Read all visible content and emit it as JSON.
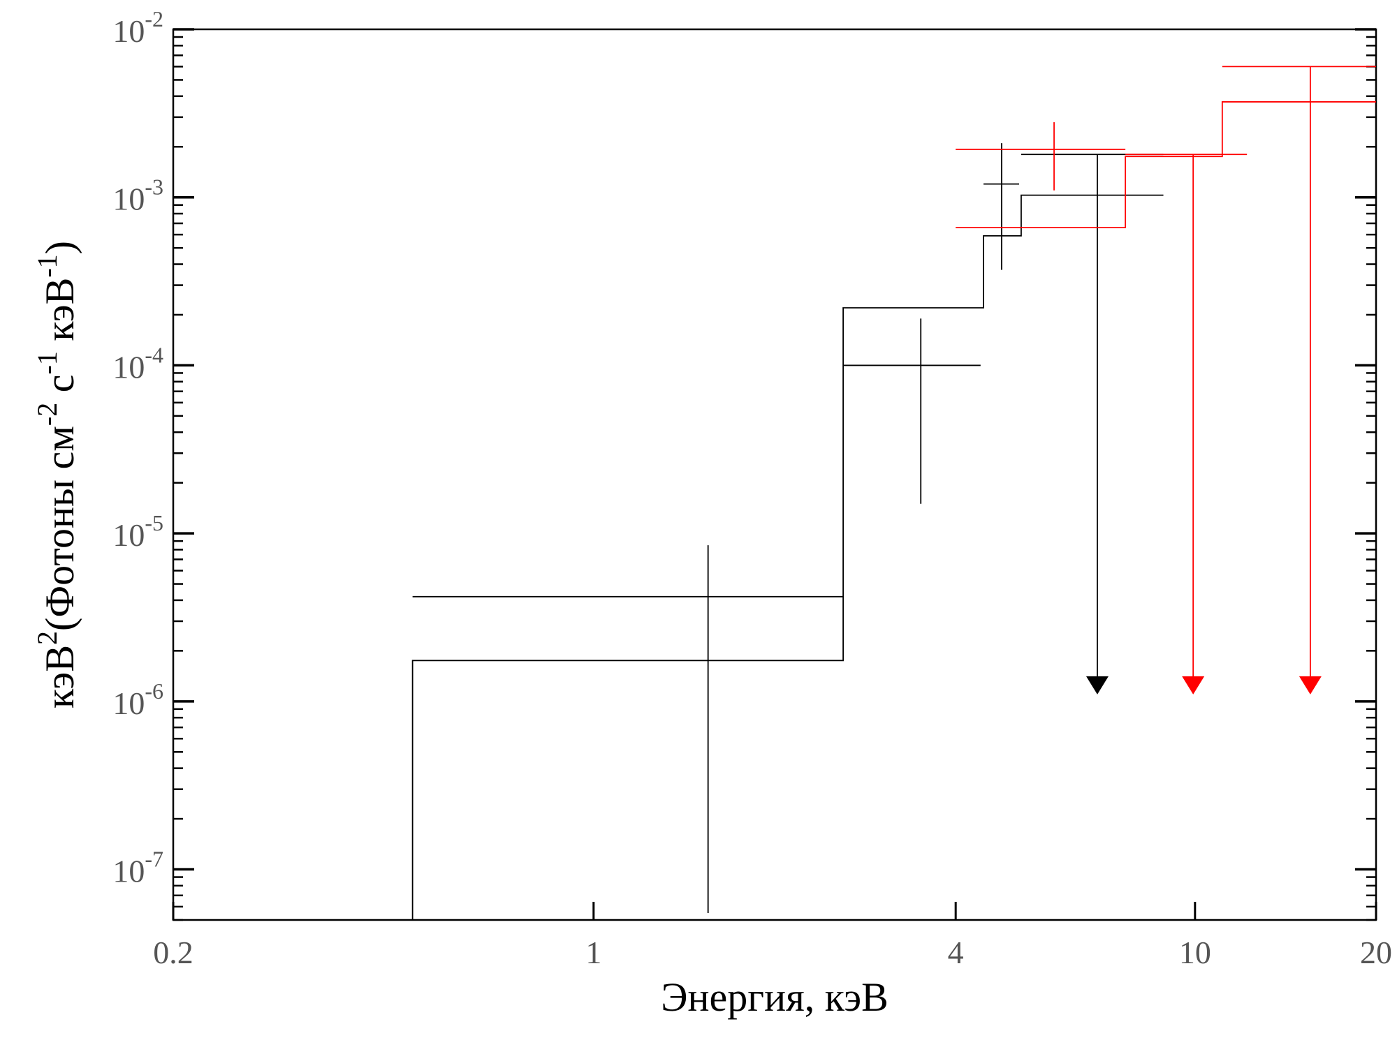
{
  "chart_data": {
    "type": "step",
    "xlabel": "Энергия, кэВ",
    "ylabel_parts": [
      "кэВ",
      "2",
      "(Фотоны см",
      "-2",
      " с",
      "-1",
      " кэВ",
      "-1",
      ")"
    ],
    "x_scale": "log",
    "y_scale": "log",
    "xlim": [
      0.2,
      20
    ],
    "ylim": [
      5e-08,
      0.01
    ],
    "x_ticks": [
      {
        "value": 0.2,
        "label": "0.2"
      },
      {
        "value": 1,
        "label": "1"
      },
      {
        "value": 4,
        "label": "4"
      },
      {
        "value": 10,
        "label": "10"
      },
      {
        "value": 20,
        "label": "20"
      }
    ],
    "y_ticks": [
      {
        "value": 0.01,
        "base": "10",
        "exp": "-2"
      },
      {
        "value": 0.001,
        "base": "10",
        "exp": "-3"
      },
      {
        "value": 0.0001,
        "base": "10",
        "exp": "-4"
      },
      {
        "value": 1e-05,
        "base": "10",
        "exp": "-5"
      },
      {
        "value": 1e-06,
        "base": "10",
        "exp": "-6"
      },
      {
        "value": 1e-07,
        "base": "10",
        "exp": "-7"
      }
    ],
    "grid": false,
    "series": [
      {
        "color": "#000000",
        "data_points": [
          {
            "x": 1.55,
            "xlo": 0.5,
            "xhi": 2.6,
            "y": 4.2e-06,
            "ylo": 5.5e-08,
            "yhi": 8.5e-06
          },
          {
            "x": 3.5,
            "xlo": 2.6,
            "xhi": 4.4,
            "y": 0.0001,
            "ylo": 1.5e-05,
            "yhi": 0.00019
          },
          {
            "x": 4.77,
            "xlo": 4.45,
            "xhi": 5.1,
            "y": 0.0012,
            "ylo": 0.00037,
            "yhi": 0.0021
          },
          {
            "x": 6.88,
            "xlo": 5.14,
            "xhi": 8.86,
            "y": 0.0018,
            "ylo": 1.1e-06,
            "yhi": 0.0018,
            "upper_limit": true
          }
        ],
        "model_steps": [
          {
            "xlo": 0.5,
            "xhi": 2.6,
            "y": 1.75e-06
          },
          {
            "xlo": 2.6,
            "xhi": 4.45,
            "y": 0.00022
          },
          {
            "xlo": 4.45,
            "xhi": 5.14,
            "y": 0.00059
          },
          {
            "xlo": 5.14,
            "xhi": 8.86,
            "y": 0.00103
          }
        ],
        "model_floor": 5e-08
      },
      {
        "color": "#ff0000",
        "data_points": [
          {
            "x": 5.83,
            "xlo": 4.0,
            "xhi": 7.66,
            "y": 0.00193,
            "ylo": 0.0011,
            "yhi": 0.0028
          },
          {
            "x": 9.93,
            "xlo": 7.66,
            "xhi": 12.2,
            "y": 0.0018,
            "ylo": 1.1e-06,
            "yhi": 0.0018,
            "upper_limit": true
          },
          {
            "x": 15.55,
            "xlo": 11.1,
            "xhi": 20.0,
            "y": 0.006,
            "ylo": 1.1e-06,
            "yhi": 0.006,
            "upper_limit": true
          }
        ],
        "model_steps": [
          {
            "xlo": 4.0,
            "xhi": 7.66,
            "y": 0.00066
          },
          {
            "xlo": 7.66,
            "xhi": 11.1,
            "y": 0.00175
          },
          {
            "xlo": 11.1,
            "xhi": 20.0,
            "y": 0.0037
          }
        ]
      }
    ]
  }
}
